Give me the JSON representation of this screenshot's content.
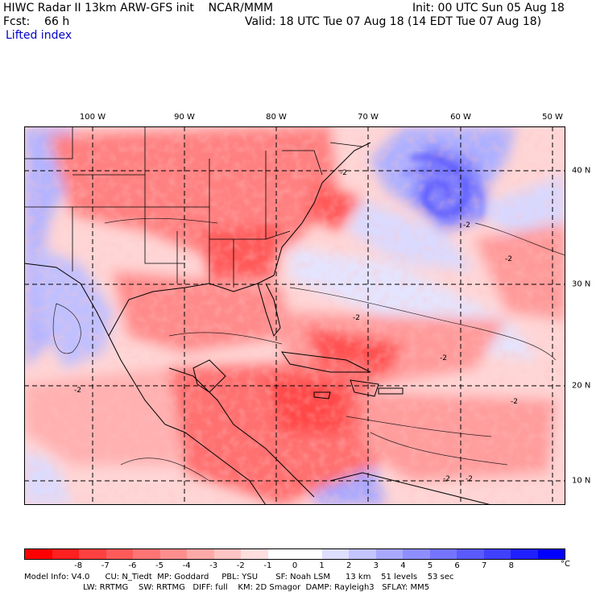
{
  "header": {
    "line1_left": "HIWC Radar II 13km ARW-GFS init    NCAR/MMM",
    "line1_right": "Init: 00 UTC Sun 05 Aug 18",
    "line2_left": "Fcst:    66 h",
    "line2_right": "Valid: 18 UTC Tue 07 Aug 18 (14 EDT Tue 07 Aug 18)",
    "line3": "Lifted index"
  },
  "map": {
    "lon_labels": [
      "100 W",
      "90 W",
      "80 W",
      "70 W",
      "60 W",
      "50 W"
    ],
    "lat_labels": [
      "40 N",
      "30 N",
      "20 N",
      "10 N"
    ],
    "contour_labels": [
      "-2",
      "-2",
      "-2",
      "-2",
      "-2",
      "-2",
      "-2",
      "-2",
      "-2"
    ]
  },
  "colorbar": {
    "colors": [
      "#ff0000",
      "#ff2020",
      "#ff4040",
      "#ff5a5a",
      "#ff7474",
      "#ff8e8e",
      "#ffa8a8",
      "#ffc4c4",
      "#ffdede",
      "#ffffff",
      "#ffffff",
      "#dedeff",
      "#c4c4ff",
      "#a8a8ff",
      "#8e8eff",
      "#7474ff",
      "#5a5aff",
      "#4040ff",
      "#2020ff",
      "#0000ff"
    ],
    "labels": [
      "-8",
      "-7",
      "-6",
      "-5",
      "-4",
      "-3",
      "-2",
      "-1",
      "0",
      "1",
      "2",
      "3",
      "4",
      "5",
      "6",
      "7",
      "8"
    ],
    "unit": "°C"
  },
  "footer": {
    "line1": "Model Info: V4.0      CU: N_Tiedt  MP: Goddard     PBL: YSU       SF: Noah LSM      13 km    51 levels    53 sec",
    "line2": "                       LW: RRTMG    SW: RRTMG   DIFF: full    KM: 2D Smagor  DAMP: Rayleigh3   SFLAY: MM5"
  }
}
